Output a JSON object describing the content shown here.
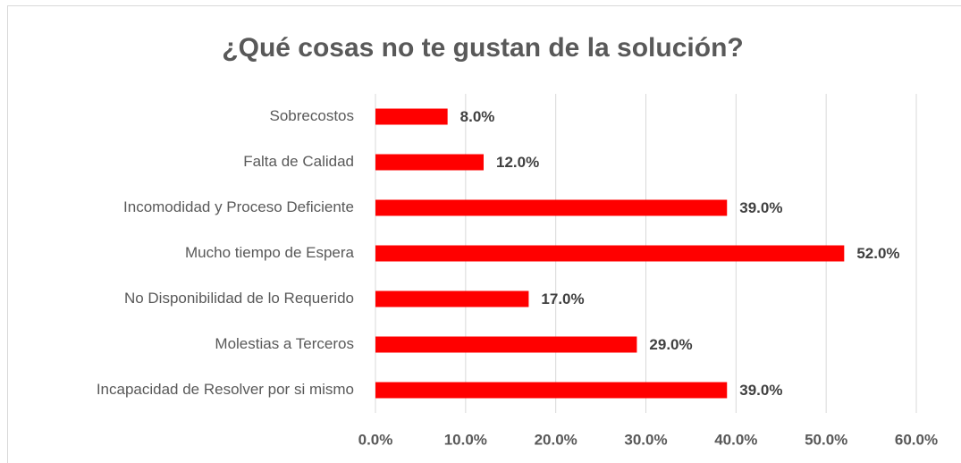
{
  "chart_data": {
    "type": "bar",
    "orientation": "horizontal",
    "title": "¿Qué cosas no te gustan de la solución?",
    "categories": [
      "Sobrecostos",
      "Falta de Calidad",
      "Incomodidad y Proceso Deficiente",
      "Mucho tiempo de Espera",
      "No Disponibilidad de lo Requerido",
      "Molestias a Terceros",
      "Incapacidad de Resolver por si mismo"
    ],
    "values": [
      8,
      12,
      39,
      52,
      17,
      29,
      39
    ],
    "value_labels": [
      "8.0%",
      "12.0%",
      "39.0%",
      "52.0%",
      "17.0%",
      "29.0%",
      "39.0%"
    ],
    "color": "#ff0000",
    "xlim": [
      0,
      60
    ],
    "xticks": [
      {
        "value": 0,
        "label": "0.0%"
      },
      {
        "value": 10,
        "label": "10.0%"
      },
      {
        "value": 20,
        "label": "20.0%"
      },
      {
        "value": 30,
        "label": "30.0%"
      },
      {
        "value": 40,
        "label": "40.0%"
      },
      {
        "value": 50,
        "label": "50.0%"
      },
      {
        "value": 60,
        "label": "60.0%"
      }
    ],
    "grid": true
  }
}
